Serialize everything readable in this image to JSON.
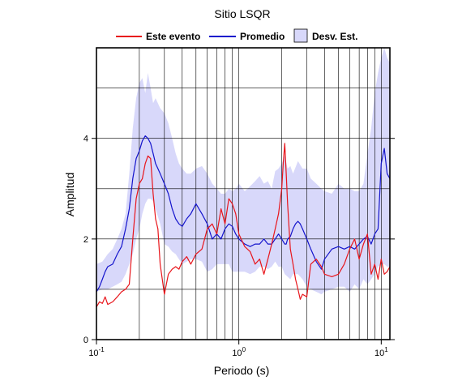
{
  "chart_data": {
    "type": "line",
    "title": "Sitio LSQR",
    "xlabel": "Periodo (s)",
    "ylabel": "Amplitud",
    "x_scale": "log",
    "xlim": [
      0.1,
      11.5
    ],
    "ylim": [
      0,
      5.8
    ],
    "grid": true,
    "legend_position": "top",
    "x_ticks": [
      {
        "base": "10",
        "exp": "-1",
        "value": 0.1
      },
      {
        "base": "10",
        "exp": "0",
        "value": 1
      },
      {
        "base": "10",
        "exp": "1",
        "value": 10
      }
    ],
    "y_ticks": [
      {
        "label": "0",
        "value": 0
      },
      {
        "label": "2",
        "value": 2
      },
      {
        "label": "4",
        "value": 4
      }
    ],
    "colors": {
      "evento": "#e8151b",
      "promedio": "#1414cc",
      "desv": "#d8d8fa"
    },
    "legend": [
      {
        "label": "Este evento",
        "kind": "line",
        "color": "#e8151b"
      },
      {
        "label": "Promedio",
        "kind": "line",
        "color": "#1414cc"
      },
      {
        "label": "Desv. Est.",
        "kind": "band",
        "color": "#d8d8fa"
      }
    ],
    "series": [
      {
        "name": "Este evento",
        "x": [
          0.1,
          0.105,
          0.11,
          0.115,
          0.12,
          0.13,
          0.14,
          0.15,
          0.16,
          0.17,
          0.18,
          0.19,
          0.2,
          0.21,
          0.22,
          0.23,
          0.24,
          0.25,
          0.26,
          0.27,
          0.28,
          0.3,
          0.32,
          0.34,
          0.36,
          0.38,
          0.4,
          0.43,
          0.46,
          0.5,
          0.55,
          0.6,
          0.65,
          0.7,
          0.75,
          0.8,
          0.85,
          0.9,
          0.95,
          1.0,
          1.1,
          1.2,
          1.3,
          1.4,
          1.5,
          1.6,
          1.7,
          1.8,
          1.9,
          2.0,
          2.05,
          2.1,
          2.15,
          2.2,
          2.3,
          2.4,
          2.5,
          2.6,
          2.7,
          2.8,
          3.0,
          3.2,
          3.5,
          3.8,
          4.0,
          4.5,
          5.0,
          5.5,
          6.0,
          6.5,
          7.0,
          7.5,
          8.0,
          8.5,
          9.0,
          9.5,
          10.0,
          10.5,
          11.0,
          11.5
        ],
        "y": [
          0.65,
          0.75,
          0.72,
          0.85,
          0.7,
          0.75,
          0.85,
          0.95,
          1.0,
          1.1,
          2.0,
          2.8,
          3.1,
          3.2,
          3.5,
          3.65,
          3.6,
          2.9,
          2.4,
          2.2,
          1.5,
          0.9,
          1.3,
          1.4,
          1.45,
          1.4,
          1.55,
          1.65,
          1.5,
          1.7,
          1.8,
          2.2,
          2.3,
          2.1,
          2.6,
          2.3,
          2.8,
          2.7,
          2.5,
          2.1,
          1.85,
          1.75,
          1.5,
          1.6,
          1.3,
          1.6,
          1.9,
          2.2,
          2.5,
          3.0,
          3.5,
          3.9,
          3.3,
          2.7,
          1.8,
          1.5,
          1.2,
          1.0,
          0.8,
          0.9,
          0.85,
          1.5,
          1.6,
          1.45,
          1.3,
          1.25,
          1.3,
          1.5,
          1.8,
          2.0,
          1.6,
          1.9,
          2.1,
          1.3,
          1.5,
          1.2,
          1.6,
          1.3,
          1.35,
          1.45
        ]
      },
      {
        "name": "Promedio",
        "x": [
          0.1,
          0.105,
          0.11,
          0.115,
          0.12,
          0.13,
          0.14,
          0.15,
          0.16,
          0.17,
          0.18,
          0.19,
          0.2,
          0.21,
          0.22,
          0.23,
          0.24,
          0.25,
          0.26,
          0.27,
          0.28,
          0.3,
          0.32,
          0.34,
          0.36,
          0.38,
          0.4,
          0.43,
          0.46,
          0.5,
          0.55,
          0.6,
          0.65,
          0.7,
          0.75,
          0.8,
          0.85,
          0.9,
          0.95,
          1.0,
          1.1,
          1.2,
          1.3,
          1.4,
          1.5,
          1.6,
          1.7,
          1.8,
          1.9,
          2.0,
          2.05,
          2.1,
          2.15,
          2.2,
          2.3,
          2.4,
          2.5,
          2.6,
          2.7,
          2.8,
          3.0,
          3.2,
          3.5,
          3.8,
          4.0,
          4.5,
          5.0,
          5.5,
          6.0,
          6.5,
          7.0,
          7.5,
          8.0,
          8.5,
          9.0,
          9.5,
          10.0,
          10.5,
          11.0,
          11.5
        ],
        "y": [
          0.95,
          1.05,
          1.2,
          1.35,
          1.45,
          1.5,
          1.7,
          1.85,
          2.2,
          2.6,
          3.2,
          3.6,
          3.75,
          3.95,
          4.05,
          4.0,
          3.9,
          3.7,
          3.5,
          3.4,
          3.3,
          3.1,
          2.9,
          2.6,
          2.4,
          2.3,
          2.25,
          2.4,
          2.5,
          2.7,
          2.5,
          2.3,
          2.0,
          2.1,
          2.0,
          2.2,
          2.3,
          2.25,
          2.1,
          2.0,
          1.9,
          1.85,
          1.9,
          1.9,
          2.0,
          1.9,
          1.9,
          2.0,
          2.1,
          2.0,
          1.95,
          1.9,
          1.9,
          2.0,
          2.05,
          2.2,
          2.3,
          2.35,
          2.3,
          2.2,
          2.0,
          1.8,
          1.55,
          1.4,
          1.6,
          1.8,
          1.85,
          1.8,
          1.85,
          1.8,
          1.9,
          2.0,
          2.05,
          1.9,
          2.1,
          2.2,
          3.5,
          3.8,
          3.3,
          3.2
        ]
      },
      {
        "name": "Desv. Est.",
        "type": "band",
        "x": [
          0.1,
          0.11,
          0.12,
          0.13,
          0.14,
          0.15,
          0.16,
          0.17,
          0.18,
          0.19,
          0.2,
          0.21,
          0.22,
          0.23,
          0.24,
          0.25,
          0.26,
          0.28,
          0.3,
          0.32,
          0.34,
          0.36,
          0.38,
          0.4,
          0.43,
          0.46,
          0.5,
          0.55,
          0.6,
          0.65,
          0.7,
          0.75,
          0.8,
          0.85,
          0.9,
          0.95,
          1.0,
          1.1,
          1.2,
          1.3,
          1.4,
          1.5,
          1.6,
          1.7,
          1.8,
          1.9,
          2.0,
          2.1,
          2.2,
          2.3,
          2.4,
          2.6,
          2.8,
          3.0,
          3.2,
          3.5,
          3.8,
          4.0,
          4.5,
          5.0,
          5.5,
          6.0,
          6.5,
          7.0,
          7.5,
          8.0,
          8.5,
          9.0,
          9.5,
          10.0,
          10.5,
          11.0,
          11.5
        ],
        "lower": [
          0.95,
          1.0,
          1.0,
          1.05,
          1.1,
          1.15,
          1.3,
          1.5,
          1.7,
          2.0,
          2.2,
          2.5,
          2.7,
          2.8,
          2.8,
          2.75,
          2.6,
          2.3,
          1.9,
          1.85,
          1.75,
          1.7,
          1.6,
          1.5,
          1.55,
          1.6,
          1.6,
          1.55,
          1.35,
          1.4,
          1.5,
          1.5,
          1.5,
          1.5,
          1.35,
          1.35,
          1.35,
          1.35,
          1.3,
          1.35,
          1.45,
          1.45,
          1.4,
          1.45,
          1.55,
          1.45,
          1.45,
          1.3,
          1.25,
          1.2,
          1.3,
          1.3,
          1.2,
          1.05,
          1.0,
          0.95,
          0.9,
          0.95,
          1.0,
          1.05,
          1.05,
          0.95,
          1.1,
          1.0,
          1.2,
          1.1,
          1.2,
          1.3,
          1.45,
          1.5,
          1.5,
          1.45,
          1.45
        ],
        "upper": [
          1.5,
          1.55,
          1.7,
          1.8,
          2.0,
          2.2,
          2.5,
          3.3,
          4.2,
          4.8,
          5.1,
          5.2,
          4.9,
          5.3,
          5.0,
          4.7,
          4.8,
          4.6,
          4.5,
          4.3,
          4.0,
          3.7,
          3.5,
          3.4,
          3.3,
          3.3,
          3.4,
          3.45,
          3.3,
          3.1,
          3.0,
          2.9,
          2.9,
          3.0,
          2.95,
          3.0,
          3.1,
          2.95,
          3.05,
          3.15,
          3.25,
          3.1,
          3.15,
          3.0,
          3.35,
          3.4,
          3.5,
          3.65,
          3.4,
          3.45,
          3.3,
          3.55,
          3.4,
          3.4,
          3.2,
          3.1,
          3.0,
          2.95,
          2.9,
          3.1,
          3.0,
          3.0,
          2.95,
          2.95,
          3.1,
          3.7,
          4.2,
          4.9,
          5.3,
          5.6,
          5.8,
          5.6,
          5.5
        ]
      }
    ]
  }
}
